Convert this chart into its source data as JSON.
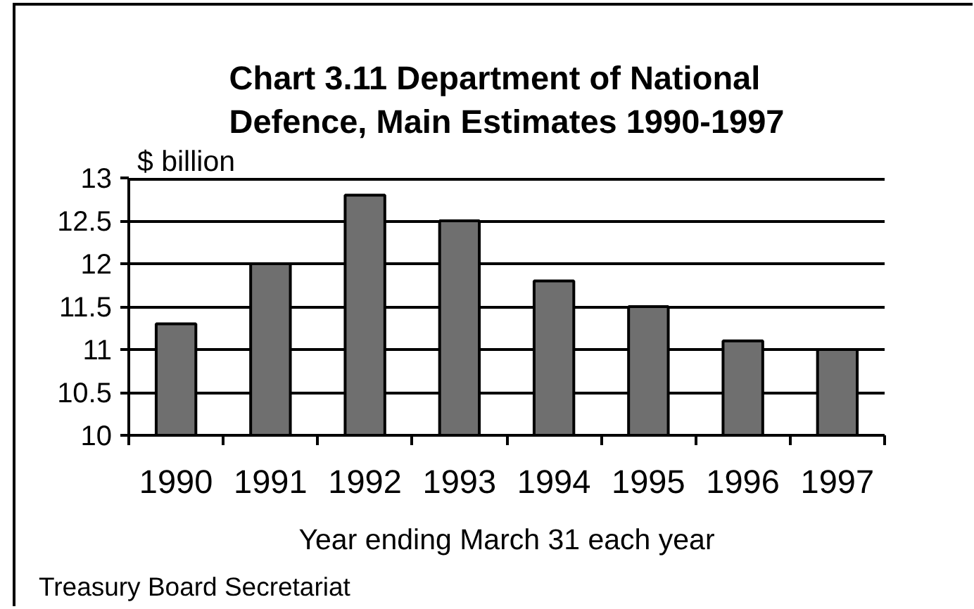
{
  "chart_data": {
    "type": "bar",
    "title": "Chart 3.11 Department of National Defence, Main Estimates 1990-1997",
    "ylabel": "$ billion",
    "xlabel": "Year ending March 31 each year",
    "annotations": [
      "Treasury Board Secretariat"
    ],
    "categories": [
      "1990",
      "1991",
      "1992",
      "1993",
      "1994",
      "1995",
      "1996",
      "1997"
    ],
    "values": [
      11.3,
      12.0,
      12.8,
      12.5,
      11.8,
      11.5,
      11.1,
      11.0
    ],
    "color": "#6f6f6f",
    "ylim": [
      10,
      13
    ],
    "yticks": [
      10,
      10.5,
      11,
      11.5,
      12,
      12.5,
      13
    ],
    "grid": "y"
  }
}
